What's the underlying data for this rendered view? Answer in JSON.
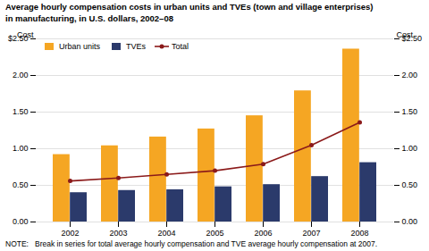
{
  "chart_data": {
    "type": "bar",
    "title": "Average hourly compensation costs in urban units and TVEs (town and village enterprises)",
    "subtitle": "in manufacturing, in U.S. dollars, 2002–08",
    "caption": "NOTE:   Break in series for total average hourly compensation and TVE average hourly compensation at 2007.",
    "y_label": "Cost",
    "categories": [
      2002,
      2003,
      2004,
      2005,
      2006,
      2007,
      2008
    ],
    "series": [
      {
        "name": "Urban units",
        "type": "bar",
        "color": "#F5A623",
        "values": [
          0.92,
          1.04,
          1.16,
          1.27,
          1.45,
          1.79,
          2.36
        ]
      },
      {
        "name": "TVEs",
        "type": "bar",
        "color": "#2B3A6B",
        "values": [
          0.4,
          0.43,
          0.44,
          0.48,
          0.51,
          0.62,
          0.81
        ]
      },
      {
        "name": "Total",
        "type": "line",
        "marker": "o",
        "color": "#8B1A1A",
        "values": [
          0.56,
          0.6,
          0.65,
          0.7,
          0.79,
          1.05,
          1.36
        ]
      }
    ],
    "ylim": [
      0.0,
      2.5
    ],
    "yticks": [
      {
        "value": 0.0,
        "label": "0.00"
      },
      {
        "value": 0.5,
        "label": "0.50"
      },
      {
        "value": 1.0,
        "label": "1.00"
      },
      {
        "value": 1.5,
        "label": "1.50"
      },
      {
        "value": 2.0,
        "label": "2.00"
      },
      {
        "value": 2.5,
        "label": "$2.50"
      }
    ],
    "grid": true,
    "legend": "upper left"
  }
}
